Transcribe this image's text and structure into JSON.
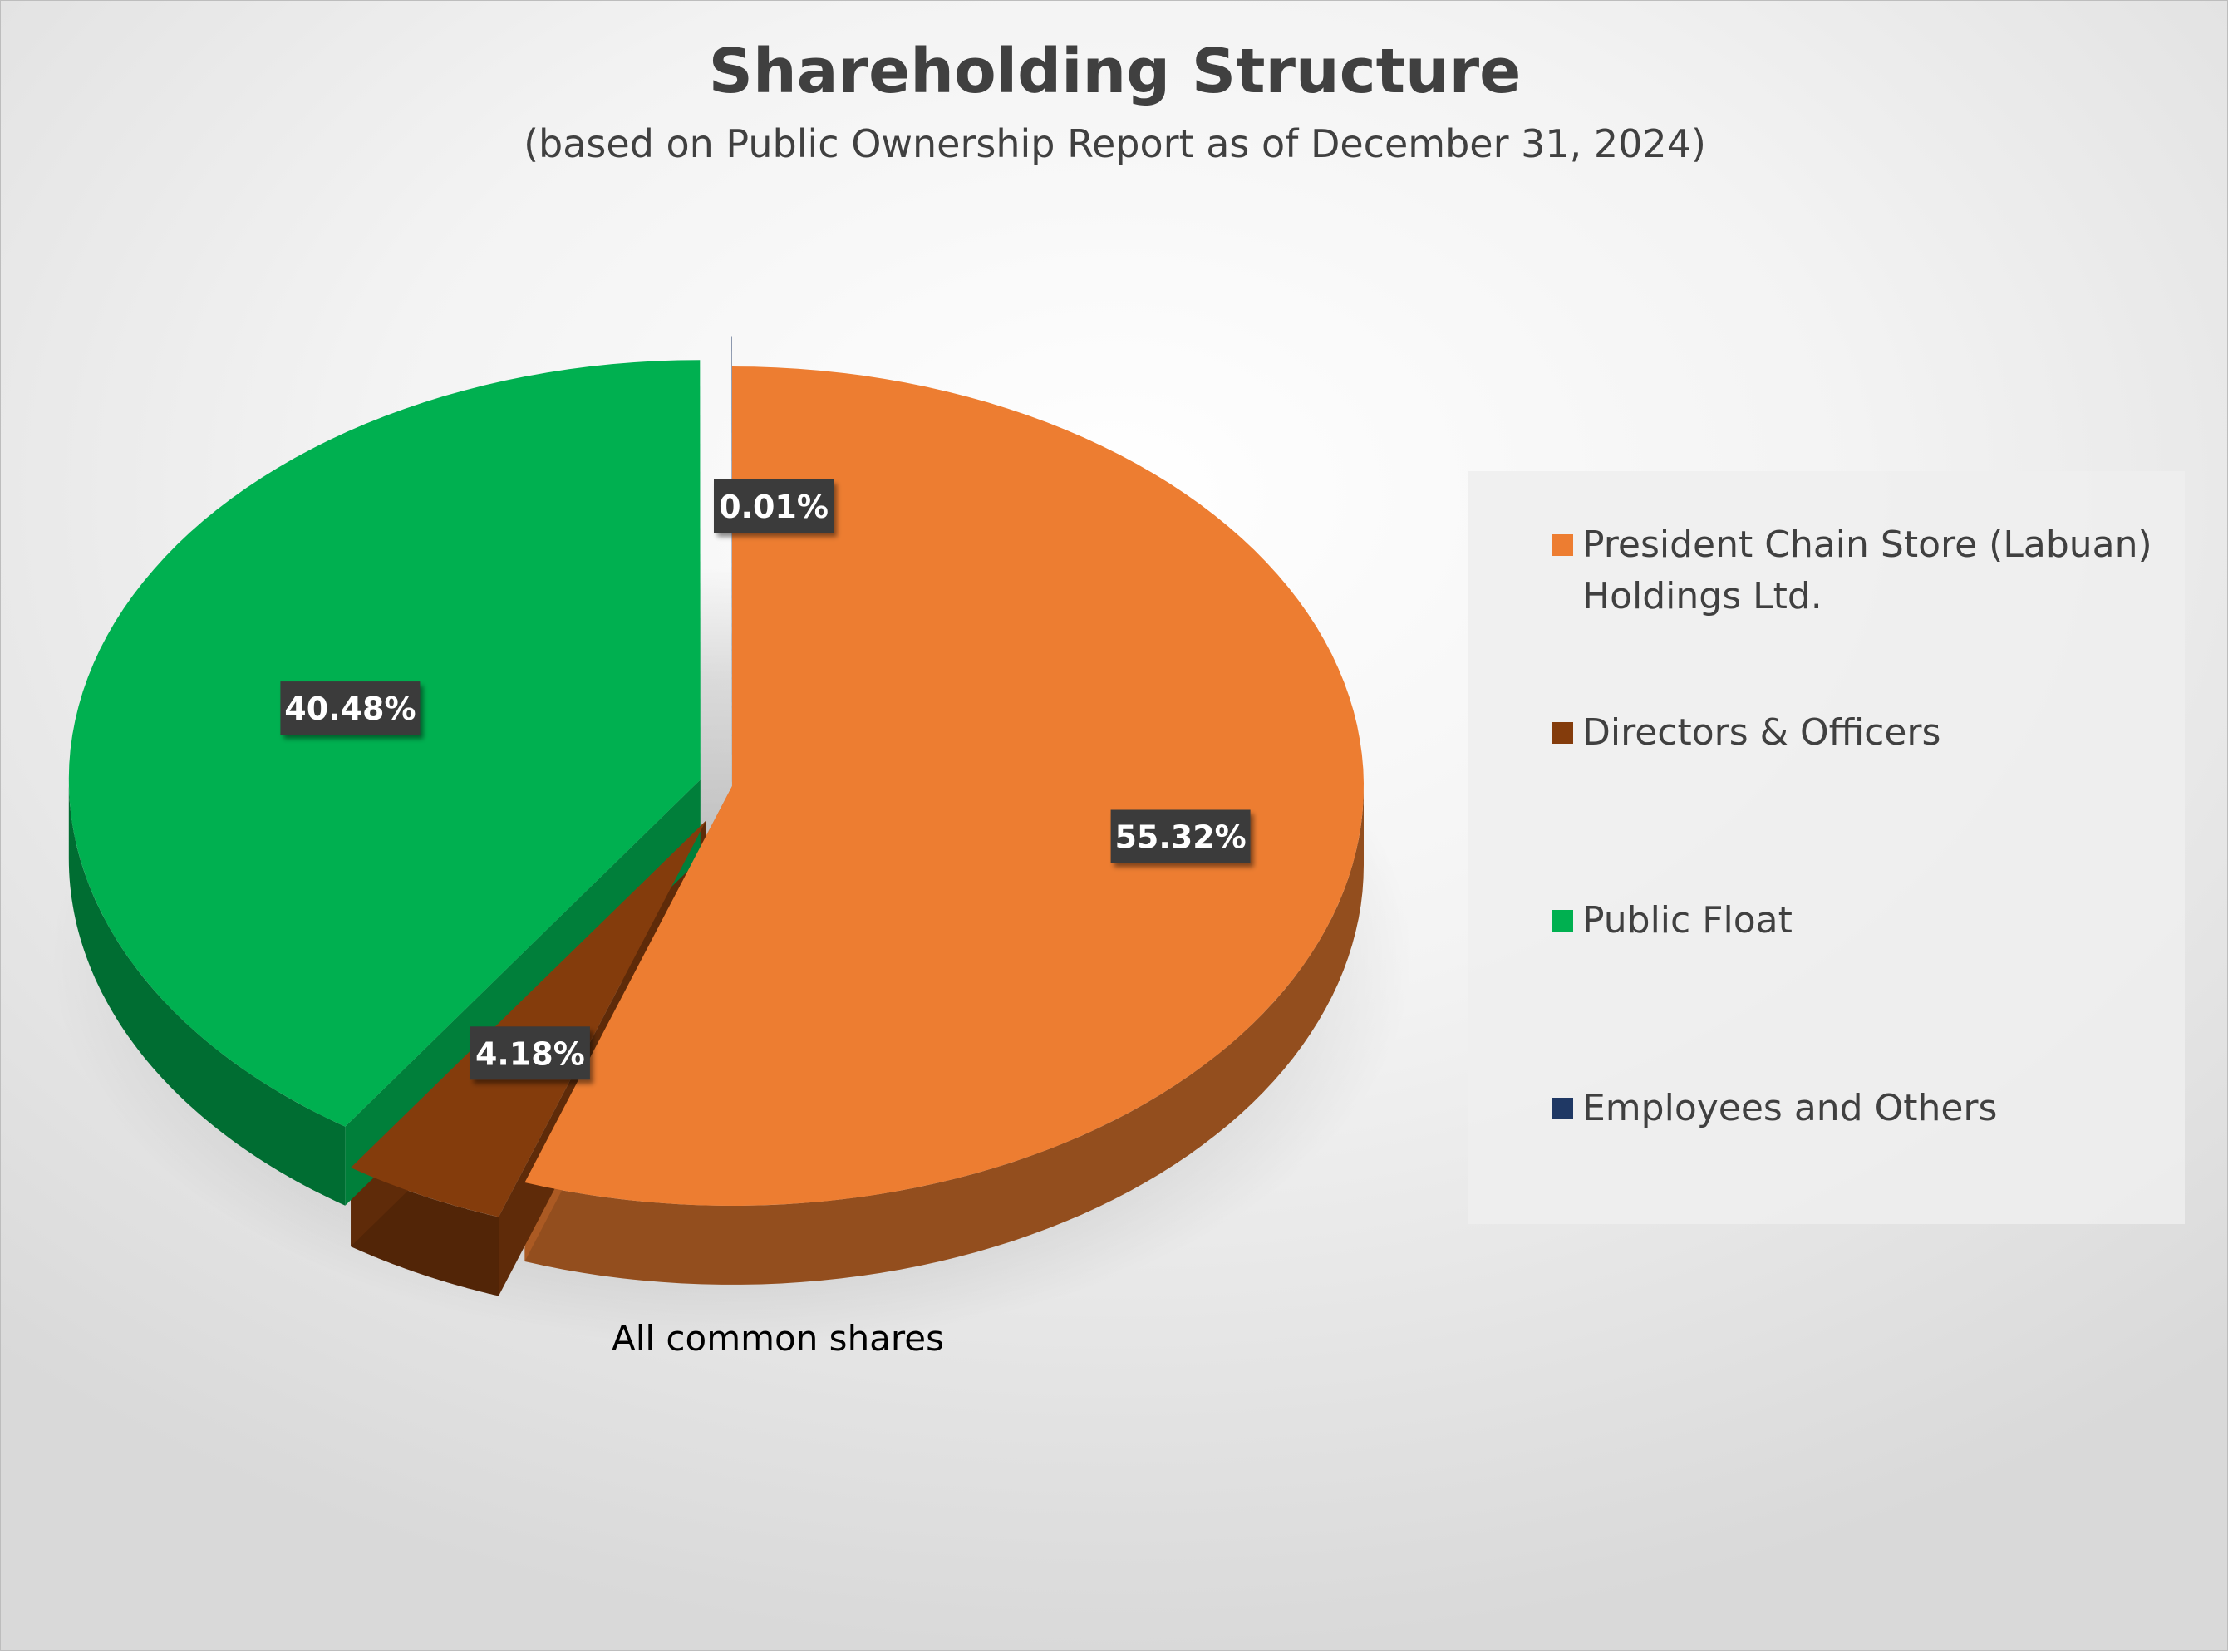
{
  "chart_data": {
    "type": "pie",
    "title": "Shareholding Structure",
    "subtitle": "(based on Public Ownership Report as of December 31, 2024)",
    "category_label": "All common shares",
    "legend_position": "right",
    "slices": [
      {
        "name": "President Chain Store (Labuan) Holdings Ltd.",
        "value": 55.32,
        "label": "55.32%",
        "color": "#ED7D31"
      },
      {
        "name": "Directors & Officers",
        "value": 4.18,
        "label": "4.18%",
        "color": "#843C0C"
      },
      {
        "name": "Public Float",
        "value": 40.48,
        "label": "40.48%",
        "color": "#00B050"
      },
      {
        "name": "Employees and Others",
        "value": 0.01,
        "label": "0.01%",
        "color": "#1F3864"
      }
    ]
  }
}
